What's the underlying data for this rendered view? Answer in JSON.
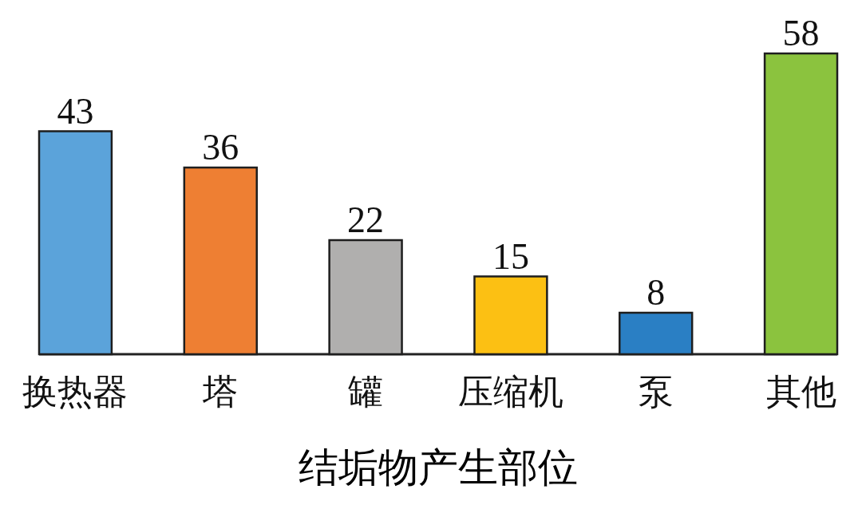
{
  "chart_data": {
    "type": "bar",
    "xlabel": "结垢物产生部位",
    "categories": [
      "换热器",
      "塔",
      "罐",
      "压缩机",
      "泵",
      "其他"
    ],
    "values": [
      43,
      36,
      22,
      15,
      8,
      58
    ],
    "colors": [
      "#5ba3da",
      "#ee7f33",
      "#b0afae",
      "#fcc013",
      "#2a7fc4",
      "#8bc33e"
    ],
    "data_labels": true,
    "tick_labels": "x"
  }
}
